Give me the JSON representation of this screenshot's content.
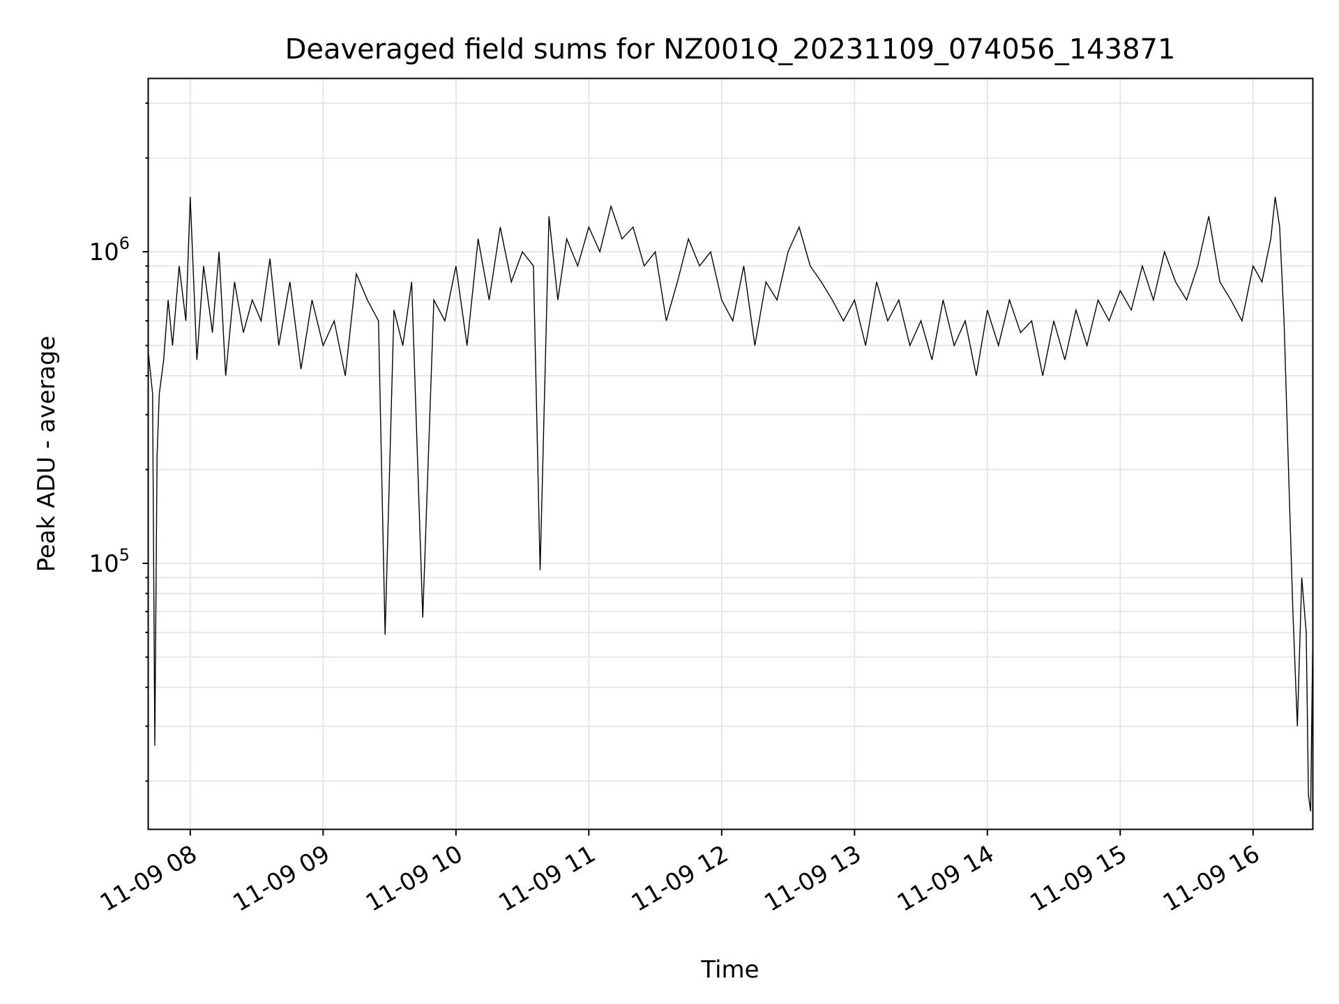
{
  "chart_data": {
    "type": "line",
    "title": "Deaveraged field sums for NZ001Q_20231109_074056_143871",
    "xlabel": "Time",
    "ylabel": "Peak ADU - average",
    "yscale": "log",
    "grid": true,
    "legend": "none",
    "xlim": [
      "2023-11-09 07:41",
      "2023-11-09 16:27"
    ],
    "ylim": [
      14000,
      3600000
    ],
    "x_ticks": [
      {
        "t": "2023-11-09 08:00",
        "label": "11-09 08"
      },
      {
        "t": "2023-11-09 09:00",
        "label": "11-09 09"
      },
      {
        "t": "2023-11-09 10:00",
        "label": "11-09 10"
      },
      {
        "t": "2023-11-09 11:00",
        "label": "11-09 11"
      },
      {
        "t": "2023-11-09 12:00",
        "label": "11-09 12"
      },
      {
        "t": "2023-11-09 13:00",
        "label": "11-09 13"
      },
      {
        "t": "2023-11-09 14:00",
        "label": "11-09 14"
      },
      {
        "t": "2023-11-09 15:00",
        "label": "11-09 15"
      },
      {
        "t": "2023-11-09 16:00",
        "label": "11-09 16"
      }
    ],
    "y_ticks": [
      {
        "value": 100000,
        "base": "10",
        "exp": "5"
      },
      {
        "value": 1000000,
        "base": "10",
        "exp": "6"
      }
    ],
    "line_color": "#000000",
    "grid_color": "#e6e6e6",
    "series": [
      {
        "x": [
          "07:41",
          "07:43",
          "07:44",
          "07:45",
          "07:46",
          "07:48",
          "07:50",
          "07:52",
          "07:55",
          "07:58",
          "08:00",
          "08:03",
          "08:06",
          "08:10",
          "08:13",
          "08:16",
          "08:20",
          "08:24",
          "08:28",
          "08:32",
          "08:36",
          "08:40",
          "08:45",
          "08:50",
          "08:55",
          "09:00",
          "09:05",
          "09:10",
          "09:15",
          "09:20",
          "09:25",
          "09:28",
          "09:32",
          "09:36",
          "09:40",
          "09:45",
          "09:50",
          "09:55",
          "10:00",
          "10:05",
          "10:10",
          "10:15",
          "10:20",
          "10:25",
          "10:30",
          "10:35",
          "10:38",
          "10:42",
          "10:46",
          "10:50",
          "10:55",
          "11:00",
          "11:05",
          "11:10",
          "11:15",
          "11:20",
          "11:25",
          "11:30",
          "11:35",
          "11:40",
          "11:45",
          "11:50",
          "11:55",
          "12:00",
          "12:05",
          "12:10",
          "12:15",
          "12:20",
          "12:25",
          "12:30",
          "12:35",
          "12:40",
          "12:45",
          "12:50",
          "12:55",
          "13:00",
          "13:05",
          "13:10",
          "13:15",
          "13:20",
          "13:25",
          "13:30",
          "13:35",
          "13:40",
          "13:45",
          "13:50",
          "13:55",
          "14:00",
          "14:05",
          "14:10",
          "14:15",
          "14:20",
          "14:25",
          "14:30",
          "14:35",
          "14:40",
          "14:45",
          "14:50",
          "14:55",
          "15:00",
          "15:05",
          "15:10",
          "15:15",
          "15:20",
          "15:25",
          "15:30",
          "15:35",
          "15:40",
          "15:45",
          "15:50",
          "15:55",
          "16:00",
          "16:04",
          "16:08",
          "16:10",
          "16:12",
          "16:14",
          "16:16",
          "16:18",
          "16:20",
          "16:22",
          "16:24",
          "16:25",
          "16:26",
          "16:27"
        ],
        "y": [
          480000,
          350000,
          26000,
          220000,
          350000,
          450000,
          700000,
          500000,
          900000,
          600000,
          1500000,
          450000,
          900000,
          550000,
          1000000,
          400000,
          800000,
          550000,
          700000,
          600000,
          950000,
          500000,
          800000,
          420000,
          700000,
          500000,
          600000,
          400000,
          850000,
          700000,
          600000,
          59000,
          650000,
          500000,
          800000,
          67000,
          700000,
          600000,
          900000,
          500000,
          1100000,
          700000,
          1200000,
          800000,
          1000000,
          900000,
          95000,
          1300000,
          700000,
          1100000,
          900000,
          1200000,
          1000000,
          1400000,
          1100000,
          1200000,
          900000,
          1000000,
          600000,
          800000,
          1100000,
          900000,
          1000000,
          700000,
          600000,
          900000,
          500000,
          800000,
          700000,
          1000000,
          1200000,
          900000,
          800000,
          700000,
          600000,
          700000,
          500000,
          800000,
          600000,
          700000,
          500000,
          600000,
          450000,
          700000,
          500000,
          600000,
          400000,
          650000,
          500000,
          700000,
          550000,
          600000,
          400000,
          600000,
          450000,
          650000,
          500000,
          700000,
          600000,
          750000,
          650000,
          900000,
          700000,
          1000000,
          800000,
          700000,
          900000,
          1300000,
          800000,
          700000,
          600000,
          900000,
          800000,
          1100000,
          1500000,
          1200000,
          600000,
          200000,
          70000,
          30000,
          90000,
          60000,
          18000,
          16000,
          60000
        ]
      }
    ]
  }
}
